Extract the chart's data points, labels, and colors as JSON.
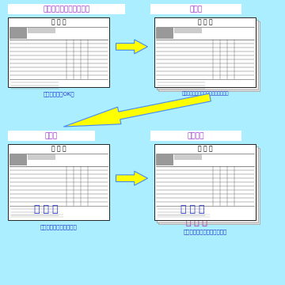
{
  "bg_color": "#aaeeff",
  "title1": "一枚ずつ書式をプリント",
  "title2": "重ねる",
  "title3": "手書き",
  "title4": "下に複写",
  "form_title": "申 込 書",
  "caption1": "コピー機でもOK！",
  "caption2": "必要に応じてホッチキス等で止める。",
  "caption3": "ボールペンで書きます。",
  "caption4": "書いた文字が下に写ります。",
  "namae": "な ま え",
  "title_color": "#9933cc",
  "caption_color": "#2233cc",
  "title_box_bg": "#ffffff",
  "arrow_color": "#ffff00",
  "arrow_edge": "#4488ff",
  "form_bg": "#ffffff",
  "form_edge": "#222222",
  "namae_color": "#2233cc",
  "namae2_color": "#aa22aa",
  "figsize": [
    3.6,
    3.6
  ],
  "dpi": 100
}
